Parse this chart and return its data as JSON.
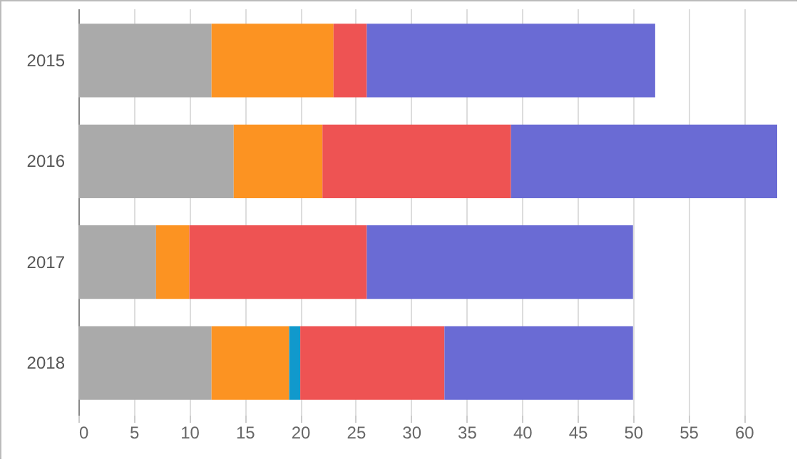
{
  "chart_data": {
    "type": "bar",
    "orientation": "horizontal",
    "stacked": true,
    "categories": [
      "2015",
      "2016",
      "2017",
      "2018"
    ],
    "series": [
      {
        "color": "#aaaaaa",
        "values": [
          12,
          14,
          7,
          12
        ]
      },
      {
        "color": "#fc9322",
        "values": [
          11,
          8,
          3,
          7
        ]
      },
      {
        "color": "#1199cc",
        "values": [
          0,
          0,
          0,
          1
        ]
      },
      {
        "color": "#ee5353",
        "values": [
          3,
          17,
          16,
          13
        ]
      },
      {
        "color": "#6a6bd4",
        "values": [
          26,
          24,
          24,
          17
        ]
      }
    ],
    "xlim": [
      0,
      63
    ],
    "xticks": [
      0,
      5,
      10,
      15,
      20,
      25,
      30,
      35,
      40,
      45,
      50,
      55,
      60
    ],
    "grid": "x"
  }
}
